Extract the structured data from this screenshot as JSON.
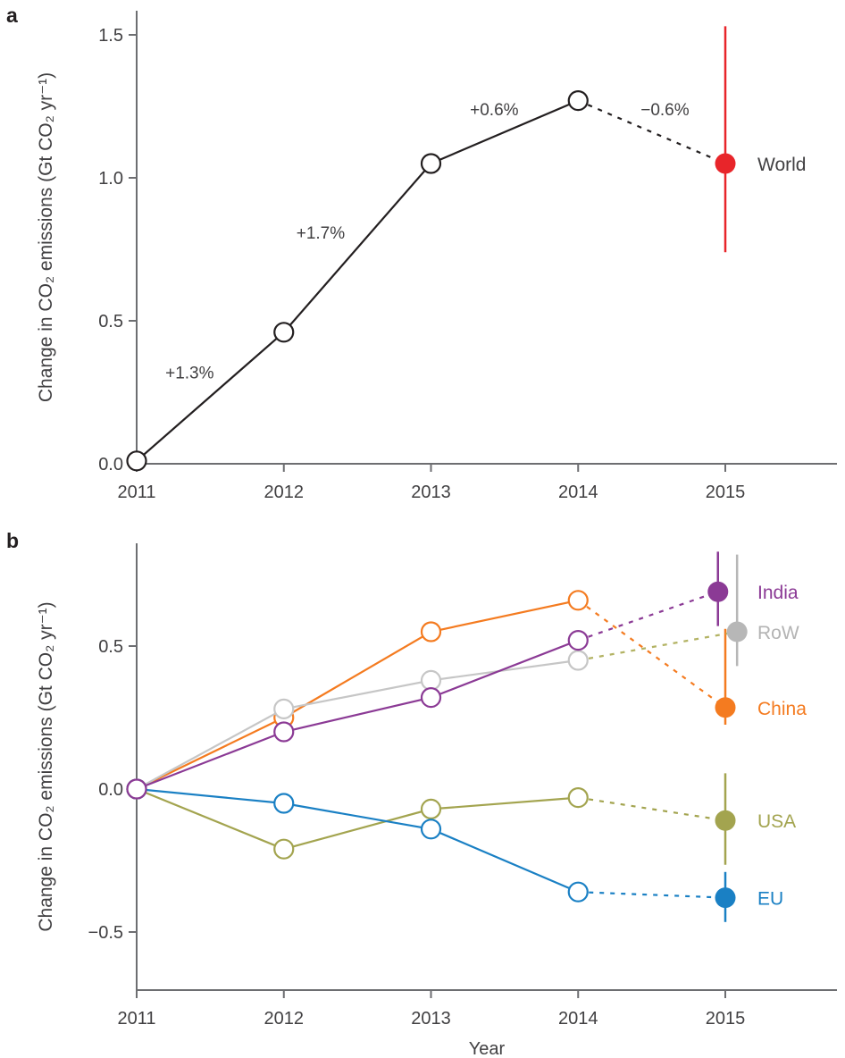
{
  "figure": {
    "panel_a_letter": "a",
    "panel_b_letter": "b"
  },
  "palette": {
    "background": "#ffffff",
    "axis": "#6d6e71",
    "text": "#414042"
  },
  "chart_data": [
    {
      "type": "line",
      "panel": "a",
      "title": "",
      "ylabel": "Change in CO₂ emissions (Gt CO₂ yr⁻¹)",
      "xlabel": "",
      "x_years": [
        2011,
        2012,
        2013,
        2014
      ],
      "xtick_labels": [
        "2011",
        "2012",
        "2013",
        "2014",
        "2015"
      ],
      "xtick_years": [
        2011,
        2012,
        2013,
        2014,
        2015
      ],
      "ytick_values": [
        0.0,
        0.5,
        1.0,
        1.5
      ],
      "ytick_labels": [
        "0.0",
        "0.5",
        "1.0",
        "1.5"
      ],
      "ylim": [
        0,
        1.58
      ],
      "grid": "off",
      "legend_position": "right-of-2015-points",
      "series": [
        {
          "name": "World",
          "label": "World",
          "line_color": "#231f20",
          "dash_color": "#231f20",
          "dot_color": "#e8252a",
          "label_color": "#414042",
          "values": [
            0.01,
            0.46,
            1.05,
            1.27
          ],
          "projection_2015": {
            "year": 2015.0,
            "value": 1.05,
            "err_lo": 0.74,
            "err_hi": 1.53
          },
          "label_value": 1.05
        }
      ],
      "annotations": [
        {
          "text": "+1.3%",
          "year": 2011.36,
          "value": 0.32
        },
        {
          "text": "+1.7%",
          "year": 2012.25,
          "value": 0.81
        },
        {
          "text": "+0.6%",
          "year": 2013.43,
          "value": 1.24
        },
        {
          "text": "−0.6%",
          "year": 2014.59,
          "value": 1.24
        }
      ]
    },
    {
      "type": "line",
      "panel": "b",
      "title": "",
      "ylabel": "Change in CO₂ emissions (Gt CO₂ yr⁻¹)",
      "xlabel": "Year",
      "x_years": [
        2011,
        2012,
        2013,
        2014
      ],
      "xtick_labels": [
        "2011",
        "2012",
        "2013",
        "2014",
        "2015"
      ],
      "xtick_years": [
        2011,
        2012,
        2013,
        2014,
        2015
      ],
      "ytick_values": [
        0.5,
        0.0,
        -0.5
      ],
      "ytick_labels": [
        "0.5",
        "0.0",
        "−0.5"
      ],
      "ylim": [
        -0.7,
        0.86
      ],
      "grid": "off",
      "legend_position": "right-of-2015-points",
      "series": [
        {
          "name": "China",
          "label": "China",
          "line_color": "#f47b20",
          "dash_color": "#f47b20",
          "dot_color": "#f47b20",
          "label_color": "#f47b20",
          "values": [
            0.0,
            0.25,
            0.55,
            0.66
          ],
          "projection_2015": {
            "year": 2015.0,
            "value": 0.285,
            "err_lo": 0.225,
            "err_hi": 0.56
          },
          "label_value": 0.285
        },
        {
          "name": "RoW",
          "label": "RoW",
          "line_color": "#c6c6c6",
          "dash_color": "#b3b364",
          "dot_color": "#b7b7b7",
          "label_color": "#b3b3b3",
          "values": [
            0.0,
            0.28,
            0.38,
            0.45
          ],
          "projection_2015": {
            "year": 2015.08,
            "value": 0.55,
            "err_lo": 0.43,
            "err_hi": 0.82
          },
          "label_value": 0.55
        },
        {
          "name": "USA",
          "label": "USA",
          "line_color": "#a3a44f",
          "dash_color": "#a3a44f",
          "dot_color": "#a3a44f",
          "label_color": "#a3a44f",
          "values": [
            0.0,
            -0.21,
            -0.07,
            -0.03
          ],
          "projection_2015": {
            "year": 2015.0,
            "value": -0.11,
            "err_lo": -0.265,
            "err_hi": 0.055
          },
          "label_value": -0.11
        },
        {
          "name": "EU",
          "label": "EU",
          "line_color": "#1a80c4",
          "dash_color": "#1a80c4",
          "dot_color": "#1a80c4",
          "label_color": "#1a80c4",
          "values": [
            0.0,
            -0.05,
            -0.14,
            -0.36
          ],
          "projection_2015": {
            "year": 2015.0,
            "value": -0.38,
            "err_lo": -0.465,
            "err_hi": -0.29
          },
          "label_value": -0.38
        },
        {
          "name": "India",
          "label": "India",
          "line_color": "#8b3a95",
          "dash_color": "#8b3a95",
          "dot_color": "#8b3a95",
          "label_color": "#8b3a95",
          "values": [
            0.0,
            0.2,
            0.32,
            0.52
          ],
          "projection_2015": {
            "year": 2014.95,
            "value": 0.69,
            "err_lo": 0.57,
            "err_hi": 0.83
          },
          "label_value": 0.69
        }
      ],
      "annotations": []
    }
  ]
}
